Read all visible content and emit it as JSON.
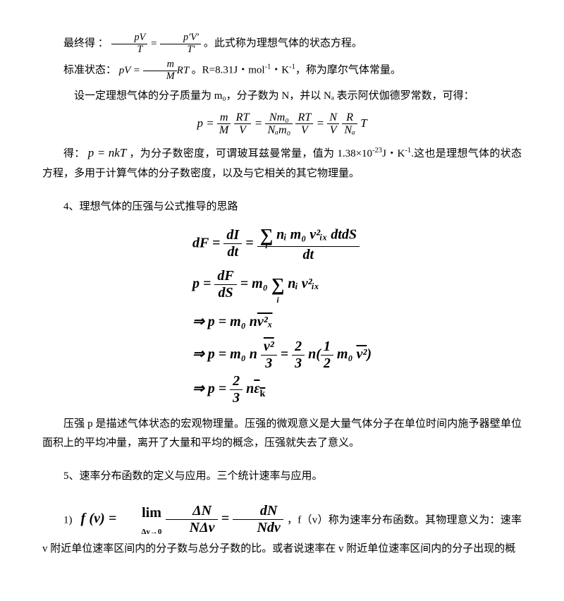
{
  "p1_prefix": "最终得 ：",
  "p1_suffix": "。此式称为理想气体的状态方程。",
  "eq1": {
    "lhs_num": "pV",
    "lhs_den": "T",
    "rhs_num": "p′V′",
    "rhs_den": "T′"
  },
  "p2_prefix": "标准状态：",
  "eq2": {
    "lhs": "pV",
    "frac_num": "m",
    "frac_den": "M",
    "tail": "RT"
  },
  "p2_suffix_a": "。R=8.31J・mol",
  "p2_sup1": "-1",
  "p2_mid": "・K",
  "p2_sup2": "-1",
  "p2_suffix_b": "，称为摩尔气体常量。",
  "p3": "设一定理想气体的分子质量为 m₀，分子数为 N，并以 Nₐ 表示阿伏伽德罗常数，可得：",
  "eq3": {
    "p": "p",
    "t1_num": "m",
    "t1_den": "M",
    "t2_num": "RT",
    "t2_den": "V",
    "t3_num": "Nm₀",
    "t3_den": "Nₐm₀",
    "t4_num": "RT",
    "t4_den": "V",
    "t5_num": "N",
    "t5_den": "V",
    "t6_num": "R",
    "t6_den": "Nₐ",
    "tail": "T"
  },
  "p4_a": "得：",
  "eq4": "p = nkT",
  "p4_b": " ，为分子数密度，可谓玻耳兹曼常量，值为 1.38×10",
  "p4_sup": "-23",
  "p4_c": "J・K",
  "p4_sup2": "-1",
  "p4_d": ".这也是理想气体的状态方程，多用于计算气体的分子数密度，以及与它相关的其它物理量。",
  "sec4": "4、理想气体的压强与公式推导的思路",
  "deriv": {
    "r1_lhs": "dF",
    "r1_a_num": "dI",
    "r1_a_den": "dt",
    "r1_b_num_pre": "",
    "r1_b_num_sum_sub": "i",
    "r1_b_num_body": "nᵢ m₀ v²ᵢₓ dtdS",
    "r1_b_den": "dt",
    "r2_lhs": "p",
    "r2_a_num": "dF",
    "r2_a_den": "dS",
    "r2_b_pre": "m₀",
    "r2_b_sum_sub": "i",
    "r2_b_body": "nᵢ v²ᵢₓ",
    "r3": "⇒ p = m₀ n",
    "r3_bar": "v²ₓ",
    "r4_pre": "⇒ p = m₀ n",
    "r4_f1_num_bar": "v²",
    "r4_f1_den": "3",
    "r4_mid": " = ",
    "r4_f2_num": "2",
    "r4_f2_den": "3",
    "r4_tail_a": "n(",
    "r4_f3_num": "1",
    "r4_f3_den": "2",
    "r4_tail_b": "m₀",
    "r4_bar2": "v²",
    "r4_tail_c": ")",
    "r5_pre": "⇒ p = ",
    "r5_f_num": "2",
    "r5_f_den": "3",
    "r5_tail": "n",
    "r5_bar": "ε",
    "r5_sub": "k"
  },
  "p5": "压强 p 是描述气体状态的宏观物理量。压强的微观意义是大量气体分子在单位时间内施予器壁单位面积上的平均冲量，离开了大量和平均的概念，压强就失去了意义。",
  "sec5": "5、速率分布函数的定义与应用。三个统计速率与应用。",
  "item1_num": "1)",
  "eq5": {
    "lhs": "f (v)",
    "lim_top": "lim",
    "lim_bot": "Δv→0",
    "f1_num": "ΔN",
    "f1_den": "NΔv",
    "f2_num": "dN",
    "f2_den": "Ndv"
  },
  "p6": "，f（v）称为速率分布函数。其物理意义为：速率 v 附近单位速率区间内的分子数与总分子数的比。或者说速率在 v 附近单位速率区间内的分子出现的概"
}
